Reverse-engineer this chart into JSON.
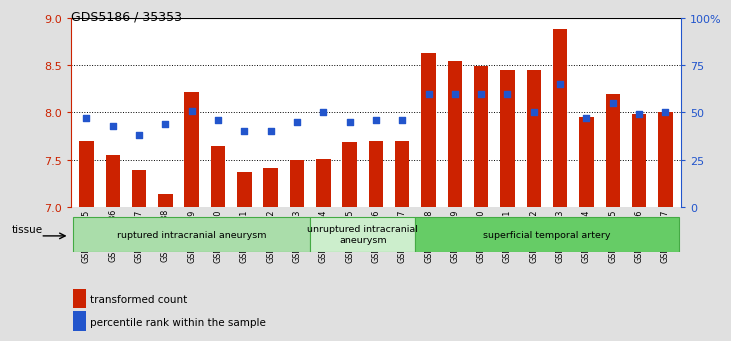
{
  "title": "GDS5186 / 35353",
  "samples": [
    "GSM1306885",
    "GSM1306886",
    "GSM1306887",
    "GSM1306888",
    "GSM1306889",
    "GSM1306890",
    "GSM1306891",
    "GSM1306892",
    "GSM1306893",
    "GSM1306894",
    "GSM1306895",
    "GSM1306896",
    "GSM1306897",
    "GSM1306898",
    "GSM1306899",
    "GSM1306900",
    "GSM1306901",
    "GSM1306902",
    "GSM1306903",
    "GSM1306904",
    "GSM1306905",
    "GSM1306906",
    "GSM1306907"
  ],
  "bar_values": [
    7.7,
    7.55,
    7.39,
    7.14,
    8.22,
    7.65,
    7.37,
    7.41,
    7.5,
    7.51,
    7.69,
    7.7,
    7.7,
    8.63,
    8.55,
    8.49,
    8.45,
    8.45,
    8.88,
    7.95,
    8.2,
    7.98,
    8.01
  ],
  "blue_pct": [
    47,
    43,
    38,
    44,
    51,
    46,
    40,
    40,
    45,
    50,
    45,
    46,
    46,
    60,
    60,
    60,
    60,
    50,
    65,
    47,
    55,
    49,
    50
  ],
  "groups": [
    {
      "label": "ruptured intracranial aneurysm",
      "start": 0,
      "end": 9,
      "color": "#aaddaa"
    },
    {
      "label": "unruptured intracranial\naneurysm",
      "start": 9,
      "end": 13,
      "color": "#cceecc"
    },
    {
      "label": "superficial temporal artery",
      "start": 13,
      "end": 23,
      "color": "#66cc66"
    }
  ],
  "ylim": [
    7.0,
    9.0
  ],
  "yticks": [
    7.0,
    7.5,
    8.0,
    8.5,
    9.0
  ],
  "y2lim": [
    0,
    100
  ],
  "y2ticks": [
    0,
    25,
    50,
    75,
    100
  ],
  "bar_color": "#cc2200",
  "dot_color": "#2255cc",
  "background_color": "#e0e0e0",
  "plot_bg": "#ffffff",
  "legend_red": "transformed count",
  "legend_blue": "percentile rank within the sample",
  "tissue_label": "tissue"
}
